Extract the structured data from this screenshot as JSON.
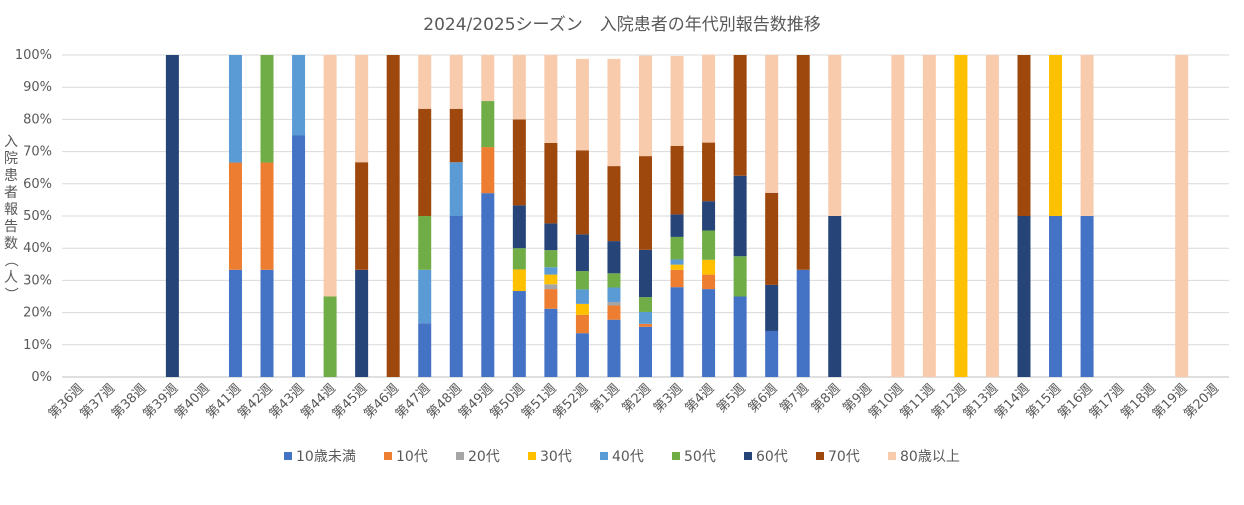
{
  "chart_data": {
    "type": "bar",
    "stacked": true,
    "normalized": true,
    "title": "2024/2025シーズン　入院患者の年代別報告数推移",
    "ylabel": "入院患者報告数（人）",
    "xlabel": "",
    "ylim": [
      0,
      100
    ],
    "y_ticks": [
      "0%",
      "10%",
      "20%",
      "30%",
      "40%",
      "50%",
      "60%",
      "70%",
      "80%",
      "90%",
      "100%"
    ],
    "grid": true,
    "legend_position": "bottom",
    "categories": [
      "第36週",
      "第37週",
      "第38週",
      "第39週",
      "第40週",
      "第41週",
      "第42週",
      "第43週",
      "第44週",
      "第45週",
      "第46週",
      "第47週",
      "第48週",
      "第49週",
      "第50週",
      "第51週",
      "第52週",
      "第1週",
      "第2週",
      "第3週",
      "第4週",
      "第5週",
      "第6週",
      "第7週",
      "第8週",
      "第9週",
      "第10週",
      "第11週",
      "第12週",
      "第13週",
      "第14週",
      "第15週",
      "第16週",
      "第17週",
      "第18週",
      "第19週",
      "第20週"
    ],
    "series": [
      {
        "name": "10歳未満",
        "color": "#4472C4",
        "values": [
          0,
          0,
          0,
          0,
          0,
          33.3,
          33.3,
          75,
          0,
          0,
          0,
          16.7,
          50,
          57.1,
          26.7,
          21.2,
          13.6,
          17.8,
          15.6,
          27.9,
          27.3,
          25,
          14.3,
          33.3,
          0,
          0,
          0,
          0,
          0,
          0,
          0,
          50,
          50,
          0,
          0,
          0,
          0
        ]
      },
      {
        "name": "10代",
        "color": "#ED7D31",
        "values": [
          0,
          0,
          0,
          0,
          0,
          33.3,
          33.3,
          0,
          0,
          0,
          0,
          0,
          0,
          14.3,
          0,
          6.1,
          5.7,
          4.4,
          0.9,
          5.4,
          4.5,
          0,
          0,
          0,
          0,
          0,
          0,
          0,
          0,
          0,
          0,
          0,
          0,
          0,
          0,
          0,
          0
        ]
      },
      {
        "name": "20代",
        "color": "#A5A5A5",
        "values": [
          0,
          0,
          0,
          0,
          0,
          0,
          0,
          0,
          0,
          0,
          0,
          0,
          0,
          0,
          0,
          1.5,
          0,
          1.1,
          0,
          0,
          0,
          0,
          0,
          0,
          0,
          0,
          0,
          0,
          0,
          0,
          0,
          0,
          0,
          0,
          0,
          0,
          0
        ]
      },
      {
        "name": "30代",
        "color": "#FFC000",
        "values": [
          0,
          0,
          0,
          0,
          0,
          0,
          0,
          0,
          0,
          0,
          0,
          0,
          0,
          0,
          6.7,
          3.0,
          3.4,
          0,
          0,
          1.6,
          4.6,
          0,
          0,
          0,
          0,
          0,
          0,
          0,
          100,
          0,
          0,
          50,
          0,
          0,
          0,
          0,
          0
        ]
      },
      {
        "name": "40代",
        "color": "#5B9BD5",
        "values": [
          0,
          0,
          0,
          0,
          0,
          33.4,
          0,
          25,
          0,
          0,
          0,
          16.6,
          16.7,
          0,
          0,
          2.3,
          4.5,
          4.5,
          3.7,
          1.6,
          0,
          0,
          0,
          0,
          0,
          0,
          0,
          0,
          0,
          0,
          0,
          0,
          0,
          0,
          0,
          0,
          0
        ]
      },
      {
        "name": "50代",
        "color": "#70AD47",
        "values": [
          0,
          0,
          0,
          0,
          0,
          0,
          33.4,
          0,
          25,
          0,
          0,
          16.7,
          0,
          14.3,
          6.6,
          5.3,
          5.7,
          4.4,
          4.6,
          7.0,
          9.1,
          12.5,
          0,
          0,
          0,
          0,
          0,
          0,
          0,
          0,
          0,
          0,
          0,
          0,
          0,
          0,
          0
        ]
      },
      {
        "name": "60代",
        "color": "#264478",
        "values": [
          0,
          0,
          0,
          100,
          0,
          0,
          0,
          0,
          0,
          33.3,
          0,
          0,
          0,
          0,
          13.3,
          8.3,
          11.4,
          10.0,
          14.7,
          7.0,
          9.1,
          25,
          14.3,
          0,
          50,
          0,
          0,
          0,
          0,
          0,
          50,
          0,
          0,
          0,
          0,
          0,
          0
        ]
      },
      {
        "name": "70代",
        "color": "#9E480E",
        "values": [
          0,
          0,
          0,
          0,
          0,
          0,
          0,
          0,
          0,
          33.4,
          100,
          33.3,
          16.6,
          0,
          26.7,
          25,
          26.1,
          23.3,
          29.1,
          21.3,
          18.2,
          37.5,
          28.6,
          66.7,
          0,
          0,
          0,
          0,
          0,
          0,
          50,
          0,
          0,
          0,
          0,
          0,
          0
        ]
      },
      {
        "name": "80歳以上",
        "color": "#F8CBAD",
        "values": [
          0,
          0,
          0,
          0,
          0,
          0,
          0,
          0,
          75,
          33.3,
          0,
          16.7,
          16.7,
          14.3,
          20,
          27.3,
          28.4,
          33.3,
          31.2,
          27.9,
          27.3,
          0,
          42.8,
          0,
          50,
          0,
          100,
          100,
          0,
          100,
          0,
          0,
          50,
          0,
          0,
          100,
          0
        ]
      }
    ]
  }
}
